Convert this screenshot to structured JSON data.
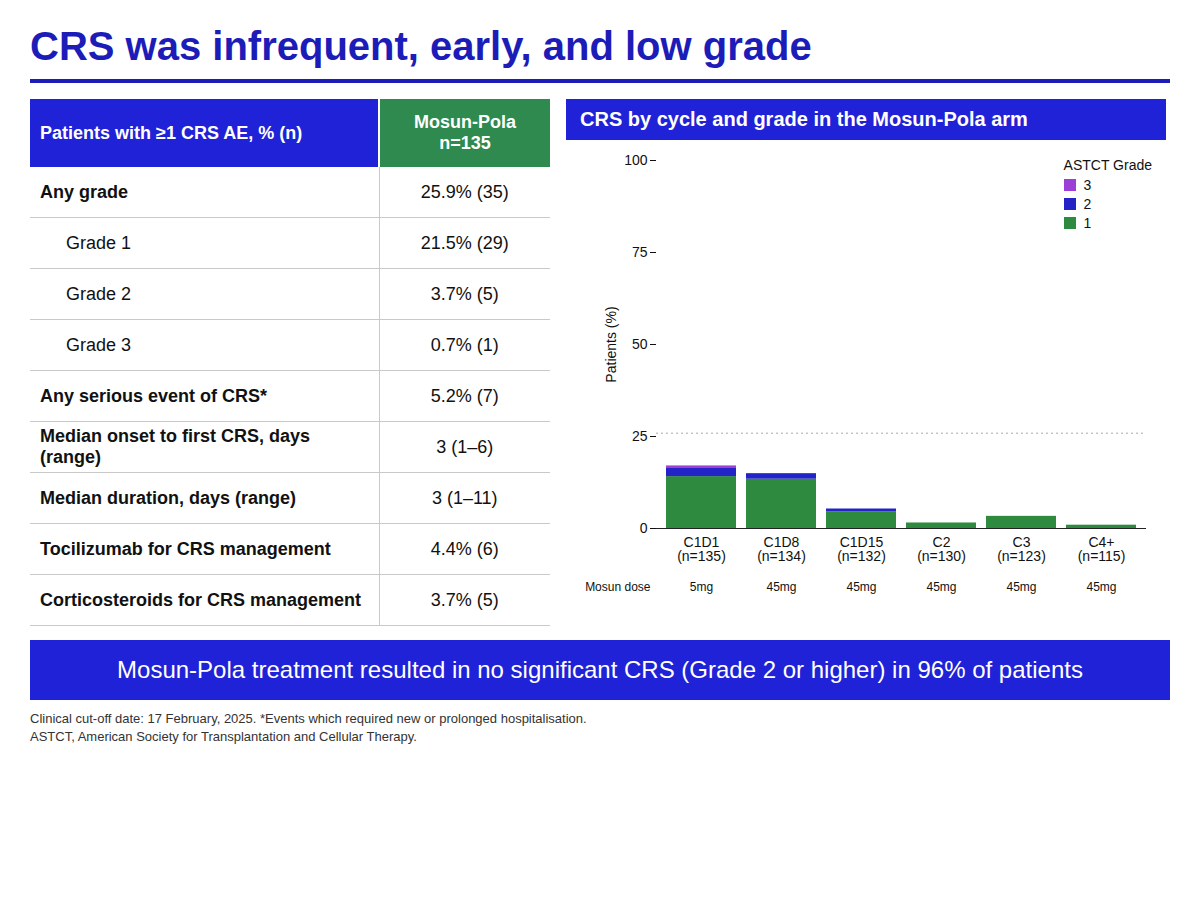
{
  "slide": {
    "title": "CRS was infrequent, early, and low grade",
    "table": {
      "header": [
        "Patients with ≥1 CRS AE, % (n)",
        [
          "Mosun-Pola",
          "n=135"
        ]
      ],
      "rows": [
        [
          "Any grade",
          "25.9% (35)"
        ],
        [
          "Grade 1",
          "21.5% (29)"
        ],
        [
          "Grade 2",
          "3.7% (5)"
        ],
        [
          "Grade 3",
          "0.7% (1)"
        ],
        [
          "Any serious event of CRS*",
          "5.2% (7)"
        ],
        [
          "Median onset to first CRS, days (range)",
          "3 (1–6)"
        ],
        [
          "Median duration, days (range)",
          "3 (1–11)"
        ],
        [
          "Tocilizumab for CRS management",
          "4.4% (6)"
        ],
        [
          "Corticosteroids for CRS management",
          "3.7% (5)"
        ]
      ]
    },
    "banner": "Mosun-Pola treatment resulted in no significant CRS (Grade 2 or higher) in 96% of patients",
    "footnotes": [
      "Clinical cut-off date: 17 February, 2025. *Events which required new or prolonged hospitalisation.",
      "ASTCT, American Society for Transplantation and Cellular Therapy."
    ]
  },
  "chart_data": {
    "type": "bar",
    "stacked": true,
    "title": "CRS by cycle and grade in the Mosun-Pola arm",
    "categories": [
      "C1D1",
      "C1D8",
      "C1D15",
      "C2",
      "C3",
      "C4+"
    ],
    "category_n": [
      "(n=135)",
      "(n=134)",
      "(n=132)",
      "(n=130)",
      "(n=123)",
      "(n=115)"
    ],
    "dose_label": "Mosun dose",
    "doses": [
      "5mg",
      "45mg",
      "45mg",
      "45mg",
      "45mg",
      "45mg"
    ],
    "y_label": "Patients (%)",
    "ylim": [
      0,
      100
    ],
    "yticks": [
      0,
      25,
      50,
      75,
      100
    ],
    "reference_line": 25.9,
    "legend": "top-right",
    "legend_title": "ASTCT Grade",
    "series": [
      {
        "name": "3",
        "color": "#9b3fd6",
        "values": [
          0.7,
          0,
          0,
          0,
          0,
          0
        ]
      },
      {
        "name": "2",
        "color": "#2323c8",
        "values": [
          2.2,
          1.5,
          0.8,
          0,
          0,
          0
        ]
      },
      {
        "name": "1",
        "color": "#2e8a3e",
        "values": [
          14.1,
          13.4,
          4.5,
          1.5,
          3.3,
          0.9
        ]
      }
    ]
  }
}
